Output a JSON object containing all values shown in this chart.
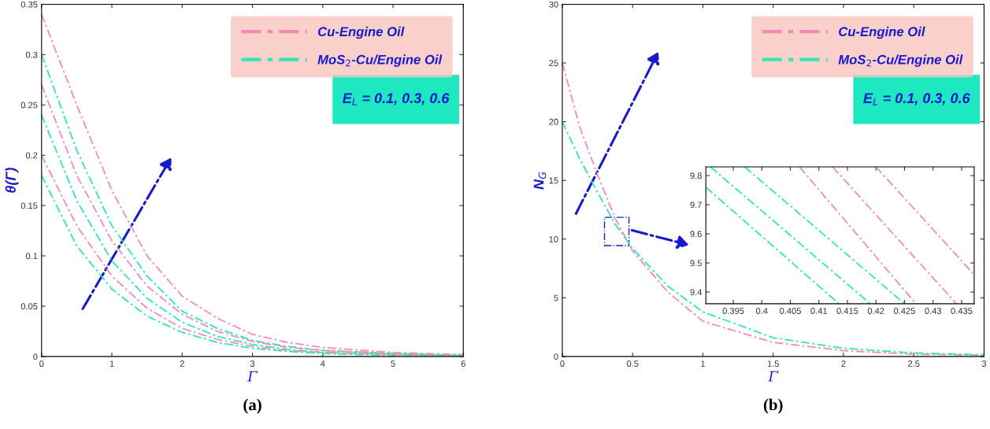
{
  "chart_data": [
    {
      "type": "line",
      "xlabel": "Γ",
      "ylabel": "θ(Γ)",
      "annotations": [
        "E$_{L}$ = 0.1, 0.3, 0.6",
        "(a)"
      ],
      "x": [
        0,
        0.5,
        1,
        1.5,
        2,
        2.5,
        3,
        3.5,
        4,
        5,
        6
      ],
      "series": [
        {
          "name": "Cu-Engine Oil",
          "color": "#f28cb4",
          "line_style": "dashed",
          "values": [
            0.34,
            0.25,
            0.165,
            0.1,
            0.06,
            0.038,
            0.022,
            0.014,
            0.009,
            0.004,
            0.002
          ]
        },
        {
          "name": "MoS$_{2}$-Cu/Engine Oil",
          "color": "#2ee6b8",
          "line_style": "dashed",
          "values": [
            0.3,
            0.205,
            0.13,
            0.08,
            0.045,
            0.028,
            0.016,
            0.01,
            0.006,
            0.003,
            0.001
          ]
        },
        {
          "color": "#f28cb4",
          "line_style": "dashed",
          "values": [
            0.27,
            0.18,
            0.115,
            0.07,
            0.042,
            0.025,
            0.015,
            0.009,
            0.006,
            0.003,
            0.001
          ]
        },
        {
          "color": "#2ee6b8",
          "line_style": "dashed",
          "values": [
            0.24,
            0.155,
            0.095,
            0.058,
            0.034,
            0.02,
            0.012,
            0.007,
            0.004,
            0.002,
            0.001
          ]
        },
        {
          "color": "#f28cb4",
          "line_style": "dashed",
          "values": [
            0.2,
            0.13,
            0.08,
            0.048,
            0.028,
            0.017,
            0.01,
            0.006,
            0.004,
            0.002,
            0.001
          ]
        },
        {
          "color": "#2ee6b8",
          "line_style": "dashed",
          "values": [
            0.18,
            0.11,
            0.067,
            0.04,
            0.024,
            0.014,
            0.008,
            0.005,
            0.003,
            0.001,
            0.0005
          ]
        }
      ],
      "xlim": [
        0,
        6
      ],
      "ylim": [
        0,
        0.35
      ],
      "xticks": [
        0,
        1,
        2,
        3,
        4,
        5,
        6
      ],
      "yticks": [
        0,
        0.05,
        0.1,
        0.15,
        0.2,
        0.25,
        0.3,
        0.35
      ],
      "legend": "top right",
      "grid": false,
      "marker": "none"
    },
    {
      "type": "line",
      "xlabel": "Γ",
      "ylabel": "N$_{G}$",
      "annotations": [
        "E$_{L}$ = 0.1, 0.3, 0.6",
        "(b)"
      ],
      "x": [
        0,
        0.125,
        0.25,
        0.375,
        0.5,
        0.75,
        1,
        1.5,
        2,
        2.5,
        3
      ],
      "series": [
        {
          "name": "Cu-Engine Oil",
          "color": "#f28cb4",
          "line_style": "dashed",
          "values": [
            25,
            19.5,
            15.5,
            11.8,
            9,
            5.5,
            3,
            1.2,
            0.5,
            0.2,
            0.1
          ]
        },
        {
          "name": "MoS$_{2}$-Cu/Engine Oil",
          "color": "#2ee6b8",
          "line_style": "dashed",
          "values": [
            20,
            16.8,
            14,
            11.3,
            9.2,
            6,
            3.8,
            1.6,
            0.7,
            0.3,
            0.15
          ]
        }
      ],
      "xlim": [
        0,
        3
      ],
      "ylim": [
        0,
        30
      ],
      "xticks": [
        0,
        0.5,
        1,
        1.5,
        2,
        2.5,
        3
      ],
      "yticks": [
        0,
        5,
        10,
        15,
        20,
        25,
        30
      ],
      "legend": "top right",
      "grid": false,
      "marker": "none"
    },
    {
      "type": "line",
      "series": [
        {
          "color": "#2ee6b8",
          "line_style": "dashed",
          "x": [
            0.3902,
            0.4135
          ],
          "values": [
            9.76,
            9.36
          ]
        },
        {
          "color": "#2ee6b8",
          "line_style": "dashed",
          "x": [
            0.391,
            0.419
          ],
          "values": [
            9.83,
            9.36
          ]
        },
        {
          "color": "#2ee6b8",
          "line_style": "dashed",
          "x": [
            0.397,
            0.425
          ],
          "values": [
            9.83,
            9.36
          ]
        },
        {
          "color": "#f28cb4",
          "line_style": "dashed",
          "x": [
            0.4066,
            0.427
          ],
          "values": [
            9.83,
            9.36
          ]
        },
        {
          "color": "#f28cb4",
          "line_style": "dashed",
          "x": [
            0.4124,
            0.4341
          ],
          "values": [
            9.83,
            9.36
          ]
        },
        {
          "color": "#f28cb4",
          "line_style": "dashed",
          "x": [
            0.42,
            0.4372
          ],
          "values": [
            9.83,
            9.46
          ]
        }
      ],
      "xlim": [
        0.3902,
        0.4372
      ],
      "ylim": [
        9.36,
        9.83
      ],
      "xticks": [
        0.395,
        0.4,
        0.405,
        0.41,
        0.415,
        0.42,
        0.425,
        0.43,
        0.435
      ],
      "yticks": [
        9.4,
        9.5,
        9.6,
        9.7,
        9.8
      ],
      "grid": false,
      "marker": "none"
    }
  ]
}
